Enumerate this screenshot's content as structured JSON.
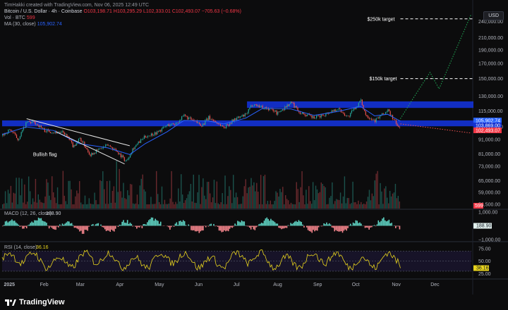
{
  "header": {
    "credit": "TimHakki created with TradingView.com, Nov 06, 2025 12:49 UTC",
    "symbol": "Bitcoin / U.S. Dollar · 4h · Coinbase",
    "o": "O103,198.71",
    "h": "H103,295.29",
    "l": "L102,333.01",
    "c": "C102,493.07",
    "chg": "−705.63 (−0.68%)",
    "vol_label": "Vol · BTC",
    "vol_value": "599",
    "ma_label": "MA (30, close)",
    "ma_value": "105,902.74"
  },
  "currency_button": "USD",
  "annotations": {
    "target_250k": "$250k target",
    "target_150k": "$150k target",
    "bullish_flag": "Bullish flag"
  },
  "footer": {
    "brand": "TradingView"
  },
  "colors": {
    "background": "#0c0c0d",
    "up": "#26a69a",
    "down": "#ef5350",
    "zone": "#1432d2",
    "ma": "#2962ff",
    "projection": "#22b35a",
    "rsi": "#e9d51d",
    "macd_up": "#5fd4c4",
    "macd_down": "#f7868d"
  },
  "chart_data": [
    {
      "type": "candlestick",
      "scale": "log",
      "ylim": [
        53500,
        270000
      ],
      "y_ticks": [
        240000,
        210000,
        190000,
        170000,
        150000,
        130000,
        115000,
        101000,
        91000,
        81000,
        73000,
        65000,
        59000,
        53500
      ],
      "y_tick_labels": [
        "240,000.00",
        "210,000.00",
        "190,000.00",
        "170,000.00",
        "150,000.00",
        "130,000.00",
        "115,000.00",
        "101,000.00",
        "91,000.00",
        "81,000.00",
        "73,000.00",
        "65,000.00",
        "59,000.00",
        "53,500.00"
      ],
      "x_labels": [
        "2025",
        "Feb",
        "Mar",
        "Apr",
        "May",
        "Jun",
        "Jul",
        "Aug",
        "Sep",
        "Oct",
        "Nov",
        "Dec"
      ],
      "price_series": [
        [
          "2025-01-01",
          94000
        ],
        [
          "2025-01-07",
          99000
        ],
        [
          "2025-01-13",
          91000
        ],
        [
          "2025-01-20",
          105000
        ],
        [
          "2025-01-26",
          104500
        ],
        [
          "2025-02-03",
          98000
        ],
        [
          "2025-02-10",
          97000
        ],
        [
          "2025-02-18",
          96000
        ],
        [
          "2025-02-25",
          86000
        ],
        [
          "2025-03-02",
          92000
        ],
        [
          "2025-03-10",
          80500
        ],
        [
          "2025-03-17",
          84000
        ],
        [
          "2025-03-24",
          87000
        ],
        [
          "2025-03-31",
          82500
        ],
        [
          "2025-04-07",
          76000
        ],
        [
          "2025-04-12",
          84500
        ],
        [
          "2025-04-22",
          93500
        ],
        [
          "2025-05-01",
          96500
        ],
        [
          "2025-05-09",
          102500
        ],
        [
          "2025-05-15",
          103500
        ],
        [
          "2025-05-22",
          110500
        ],
        [
          "2025-05-29",
          106000
        ],
        [
          "2025-06-05",
          102500
        ],
        [
          "2025-06-10",
          109000
        ],
        [
          "2025-06-22",
          100500
        ],
        [
          "2025-06-30",
          107500
        ],
        [
          "2025-07-09",
          111500
        ],
        [
          "2025-07-14",
          122000
        ],
        [
          "2025-07-22",
          118500
        ],
        [
          "2025-07-31",
          115500
        ],
        [
          "2025-08-02",
          112500
        ],
        [
          "2025-08-13",
          123500
        ],
        [
          "2025-08-20",
          113500
        ],
        [
          "2025-08-31",
          108500
        ],
        [
          "2025-09-08",
          112000
        ],
        [
          "2025-09-18",
          117500
        ],
        [
          "2025-09-26",
          109500
        ],
        [
          "2025-10-06",
          125000
        ],
        [
          "2025-10-10",
          111000
        ],
        [
          "2025-10-17",
          106500
        ],
        [
          "2025-10-27",
          115500
        ],
        [
          "2025-11-04",
          100500
        ],
        [
          "2025-11-06",
          102493
        ]
      ],
      "ma_series": [
        [
          "2025-01-01",
          95000
        ],
        [
          "2025-01-20",
          101000
        ],
        [
          "2025-02-10",
          98000
        ],
        [
          "2025-03-02",
          88000
        ],
        [
          "2025-03-24",
          85000
        ],
        [
          "2025-04-10",
          80500
        ],
        [
          "2025-04-22",
          88000
        ],
        [
          "2025-05-09",
          97000
        ],
        [
          "2025-05-22",
          106500
        ],
        [
          "2025-06-10",
          106000
        ],
        [
          "2025-06-22",
          103500
        ],
        [
          "2025-07-09",
          108500
        ],
        [
          "2025-07-22",
          117500
        ],
        [
          "2025-08-13",
          117000
        ],
        [
          "2025-08-31",
          111000
        ],
        [
          "2025-09-18",
          114500
        ],
        [
          "2025-10-06",
          119500
        ],
        [
          "2025-10-17",
          110500
        ],
        [
          "2025-10-27",
          112000
        ],
        [
          "2025-11-06",
          105902.74
        ]
      ],
      "zones": [
        {
          "from": "2025-07-10",
          "to": "2025-12-31",
          "low": 118000,
          "high": 124500
        },
        {
          "from": "2025-01-01",
          "to": "2025-12-31",
          "low": 101500,
          "high": 106500
        }
      ],
      "flag_channel": {
        "upper": [
          [
            "2025-01-20",
            108000
          ],
          [
            "2025-04-10",
            86500
          ]
        ],
        "lower": [
          [
            "2025-02-12",
            97000
          ],
          [
            "2025-04-06",
            74500
          ]
        ]
      },
      "projection": [
        [
          "2025-11-06",
          108000
        ],
        [
          "2025-11-17",
          130000
        ],
        [
          "2025-11-29",
          158000
        ],
        [
          "2025-12-06",
          138000
        ],
        [
          "2025-12-31",
          255000
        ]
      ],
      "projection_down": [
        [
          "2025-11-06",
          103500
        ],
        [
          "2025-12-31",
          96000
        ]
      ],
      "targets": [
        {
          "label": "$250k target",
          "value": 245000,
          "from": "2025-11-06"
        },
        {
          "label": "$150k target",
          "value": 150000,
          "from": "2025-11-06"
        }
      ],
      "last_values": [
        {
          "label": "105,902.74",
          "value": 105902.74,
          "color": "#2962ff"
        },
        {
          "label": "103,869.00",
          "value": 103869,
          "color": "#1432d2"
        },
        {
          "label": "102,493.07",
          "value": 102493.07,
          "color": "#f23645"
        }
      ]
    },
    {
      "type": "bar",
      "name": "Vol · BTC",
      "last_value_label": "599"
    },
    {
      "type": "histogram",
      "name": "MACD (12, 26, close)",
      "value_label": "188.90",
      "ylim": [
        -1000,
        1000
      ],
      "y_ticks": [
        1000,
        0,
        -1000
      ],
      "y_tick_labels": [
        "1,000.00",
        "0.00",
        "−1,000.00"
      ]
    },
    {
      "type": "line",
      "name": "RSI (14, close)",
      "value_label": "36.16",
      "ylim": [
        20,
        82
      ],
      "y_ticks": [
        75,
        50,
        25
      ],
      "y_tick_labels": [
        "75.00",
        "50.00",
        "25.00"
      ],
      "last_value": 36.16
    }
  ]
}
